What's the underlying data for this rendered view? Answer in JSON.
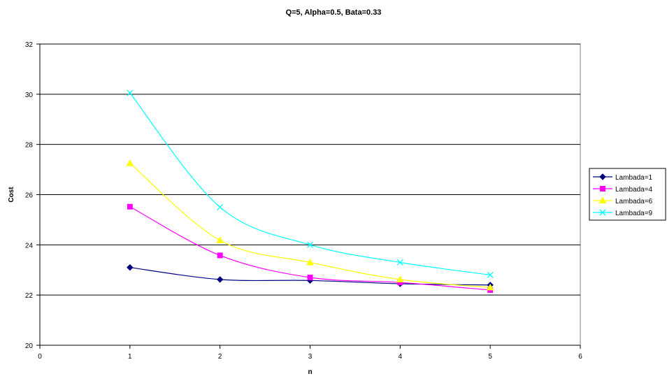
{
  "chart_data": {
    "type": "line",
    "title": "Q=5, Alpha=0.5, Bata=0.33",
    "xlabel": "n",
    "ylabel": "Cost",
    "xlim": [
      0,
      6
    ],
    "ylim": [
      20,
      32
    ],
    "xticks": [
      "0",
      "1",
      "2",
      "3",
      "4",
      "5",
      "6"
    ],
    "yticks": [
      "20",
      "22",
      "24",
      "26",
      "28",
      "30",
      "32"
    ],
    "grid": "horizontal",
    "legend_position": "right",
    "x": [
      1,
      2,
      3,
      4,
      5
    ],
    "series": [
      {
        "name": "Lambada=1",
        "values": [
          23.1,
          22.62,
          22.58,
          22.45,
          22.4
        ],
        "color": "#000080",
        "marker": "diamond"
      },
      {
        "name": "Lambada=4",
        "values": [
          25.52,
          23.58,
          22.7,
          22.5,
          22.2
        ],
        "color": "#FF00FF",
        "marker": "square"
      },
      {
        "name": "Lambada=6",
        "values": [
          27.25,
          24.18,
          23.3,
          22.62,
          22.3
        ],
        "color": "#FFFF00",
        "marker": "triangle"
      },
      {
        "name": "Lambada=9",
        "values": [
          30.05,
          25.5,
          24.0,
          23.3,
          22.8
        ],
        "color": "#00FFFF",
        "marker": "x"
      }
    ]
  }
}
